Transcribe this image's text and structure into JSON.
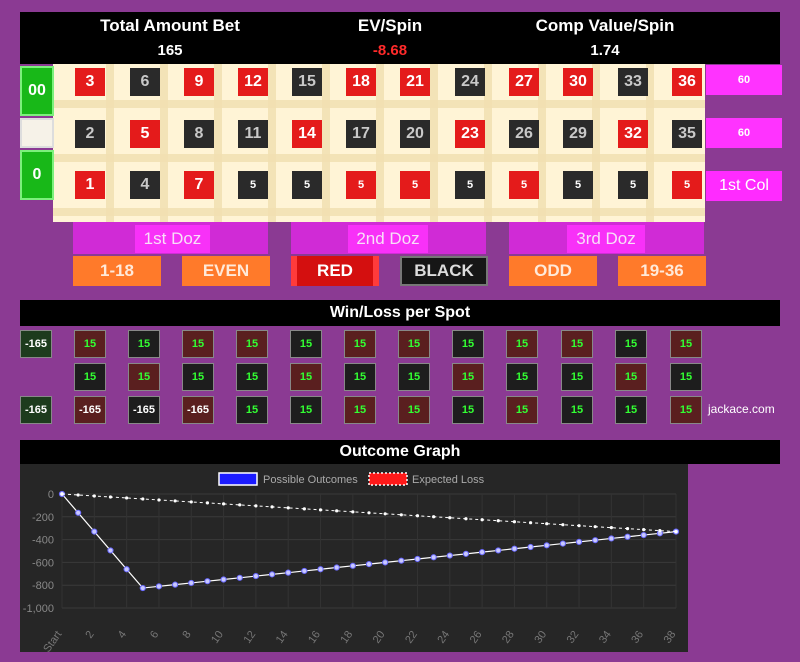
{
  "header": {
    "total_label": "Total Amount Bet",
    "total_value": "165",
    "ev_label": "EV/Spin",
    "ev_value": "-8.68",
    "comp_label": "Comp Value/Spin",
    "comp_value": "1.74"
  },
  "zeros": {
    "double_zero": "00",
    "zero": "0"
  },
  "table_rows": [
    [
      {
        "n": "3",
        "c": "red"
      },
      {
        "n": "6",
        "c": "blk",
        "gray": true
      },
      {
        "n": "9",
        "c": "red"
      },
      {
        "n": "12",
        "c": "red"
      },
      {
        "n": "15",
        "c": "blk",
        "gray": true
      },
      {
        "n": "18",
        "c": "red"
      },
      {
        "n": "21",
        "c": "red"
      },
      {
        "n": "24",
        "c": "blk",
        "gray": true
      },
      {
        "n": "27",
        "c": "red"
      },
      {
        "n": "30",
        "c": "red"
      },
      {
        "n": "33",
        "c": "blk",
        "gray": true
      },
      {
        "n": "36",
        "c": "red"
      }
    ],
    [
      {
        "n": "2",
        "c": "blk",
        "gray": true
      },
      {
        "n": "5",
        "c": "red"
      },
      {
        "n": "8",
        "c": "blk",
        "gray": true
      },
      {
        "n": "11",
        "c": "blk",
        "gray": true
      },
      {
        "n": "14",
        "c": "red"
      },
      {
        "n": "17",
        "c": "blk",
        "gray": true
      },
      {
        "n": "20",
        "c": "blk",
        "gray": true
      },
      {
        "n": "23",
        "c": "red"
      },
      {
        "n": "26",
        "c": "blk",
        "gray": true
      },
      {
        "n": "29",
        "c": "blk",
        "gray": true
      },
      {
        "n": "32",
        "c": "red"
      },
      {
        "n": "35",
        "c": "blk",
        "gray": true
      }
    ],
    [
      {
        "n": "1",
        "c": "red"
      },
      {
        "n": "4",
        "c": "blk",
        "gray": true
      },
      {
        "n": "7",
        "c": "red"
      },
      {
        "n": "5",
        "c": "blk",
        "small": true
      },
      {
        "n": "5",
        "c": "blk",
        "small": true
      },
      {
        "n": "5",
        "c": "red",
        "small": true
      },
      {
        "n": "5",
        "c": "red",
        "small": true
      },
      {
        "n": "5",
        "c": "blk",
        "small": true
      },
      {
        "n": "5",
        "c": "red",
        "small": true
      },
      {
        "n": "5",
        "c": "blk",
        "small": true
      },
      {
        "n": "5",
        "c": "blk",
        "small": true
      },
      {
        "n": "5",
        "c": "red",
        "small": true
      }
    ]
  ],
  "column_bets": [
    "60",
    "60",
    "1st Col"
  ],
  "dozens": [
    "1st Doz",
    "2nd Doz",
    "3rd Doz"
  ],
  "even_money": [
    "1-18",
    "EVEN",
    "RED",
    "BLACK",
    "ODD",
    "19-36"
  ],
  "win_loss": {
    "title": "Win/Loss per Spot",
    "zero_values": [
      "-165",
      "",
      "-165"
    ],
    "rows": [
      [
        [
          "15",
          "dr"
        ],
        [
          "15",
          "bk"
        ],
        [
          "15",
          "dr"
        ],
        [
          "15",
          "dr"
        ],
        [
          "15",
          "bk"
        ],
        [
          "15",
          "dr"
        ],
        [
          "15",
          "dr"
        ],
        [
          "15",
          "bk"
        ],
        [
          "15",
          "dr"
        ],
        [
          "15",
          "dr"
        ],
        [
          "15",
          "bk"
        ],
        [
          "15",
          "dr"
        ]
      ],
      [
        [
          "15",
          "bk"
        ],
        [
          "15",
          "dr"
        ],
        [
          "15",
          "bk"
        ],
        [
          "15",
          "bk"
        ],
        [
          "15",
          "dr"
        ],
        [
          "15",
          "bk"
        ],
        [
          "15",
          "bk"
        ],
        [
          "15",
          "dr"
        ],
        [
          "15",
          "bk"
        ],
        [
          "15",
          "bk"
        ],
        [
          "15",
          "dr"
        ],
        [
          "15",
          "bk"
        ]
      ],
      [
        [
          "-165",
          "dr"
        ],
        [
          "-165",
          "bk"
        ],
        [
          "-165",
          "dr"
        ],
        [
          "15",
          "bk"
        ],
        [
          "15",
          "bk"
        ],
        [
          "15",
          "dr"
        ],
        [
          "15",
          "dr"
        ],
        [
          "15",
          "bk"
        ],
        [
          "15",
          "dr"
        ],
        [
          "15",
          "bk"
        ],
        [
          "15",
          "bk"
        ],
        [
          "15",
          "dr"
        ]
      ]
    ],
    "site": "jackace.com"
  },
  "graph": {
    "title": "Outcome Graph",
    "legend": [
      "Possible Outcomes",
      "Expected Loss"
    ],
    "legend_colors": [
      "#1a1aff",
      "#ff1a1a"
    ],
    "y_ticks": [
      "0",
      "-200",
      "-400",
      "-600",
      "-800",
      "-1,000"
    ],
    "x_ticks": [
      "Start",
      "2",
      "4",
      "6",
      "8",
      "10",
      "12",
      "14",
      "16",
      "18",
      "20",
      "22",
      "24",
      "26",
      "28",
      "30",
      "32",
      "34",
      "36",
      "38"
    ]
  },
  "chart_data": {
    "type": "line",
    "x": [
      0,
      1,
      2,
      3,
      4,
      5,
      6,
      7,
      8,
      9,
      10,
      11,
      12,
      13,
      14,
      15,
      16,
      17,
      18,
      19,
      20,
      21,
      22,
      23,
      24,
      25,
      26,
      27,
      28,
      29,
      30,
      31,
      32,
      33,
      34,
      35,
      36,
      37,
      38
    ],
    "ylim": [
      -1000,
      0
    ],
    "series": [
      {
        "name": "Possible Outcomes",
        "values": [
          0,
          -165,
          -330,
          -495,
          -660,
          -825,
          -810,
          -795,
          -780,
          -765,
          -750,
          -735,
          -720,
          -705,
          -690,
          -675,
          -660,
          -645,
          -630,
          -615,
          -600,
          -585,
          -570,
          -555,
          -540,
          -525,
          -510,
          -495,
          -480,
          -465,
          -450,
          -435,
          -420,
          -405,
          -390,
          -375,
          -360,
          -345,
          -330
        ]
      },
      {
        "name": "Expected Loss",
        "values": [
          0,
          -8.68,
          -17.37,
          -26.05,
          -34.74,
          -43.42,
          -52.11,
          -60.79,
          -69.47,
          -78.16,
          -86.84,
          -95.53,
          -104.21,
          -112.89,
          -121.58,
          -130.26,
          -138.95,
          -147.63,
          -156.32,
          -165,
          -173.68,
          -182.37,
          -191.05,
          -199.74,
          -208.42,
          -217.11,
          -225.79,
          -234.47,
          -243.16,
          -251.84,
          -260.53,
          -269.21,
          -277.89,
          -286.58,
          -295.26,
          -303.95,
          -312.63,
          -321.32,
          -330
        ]
      }
    ]
  }
}
